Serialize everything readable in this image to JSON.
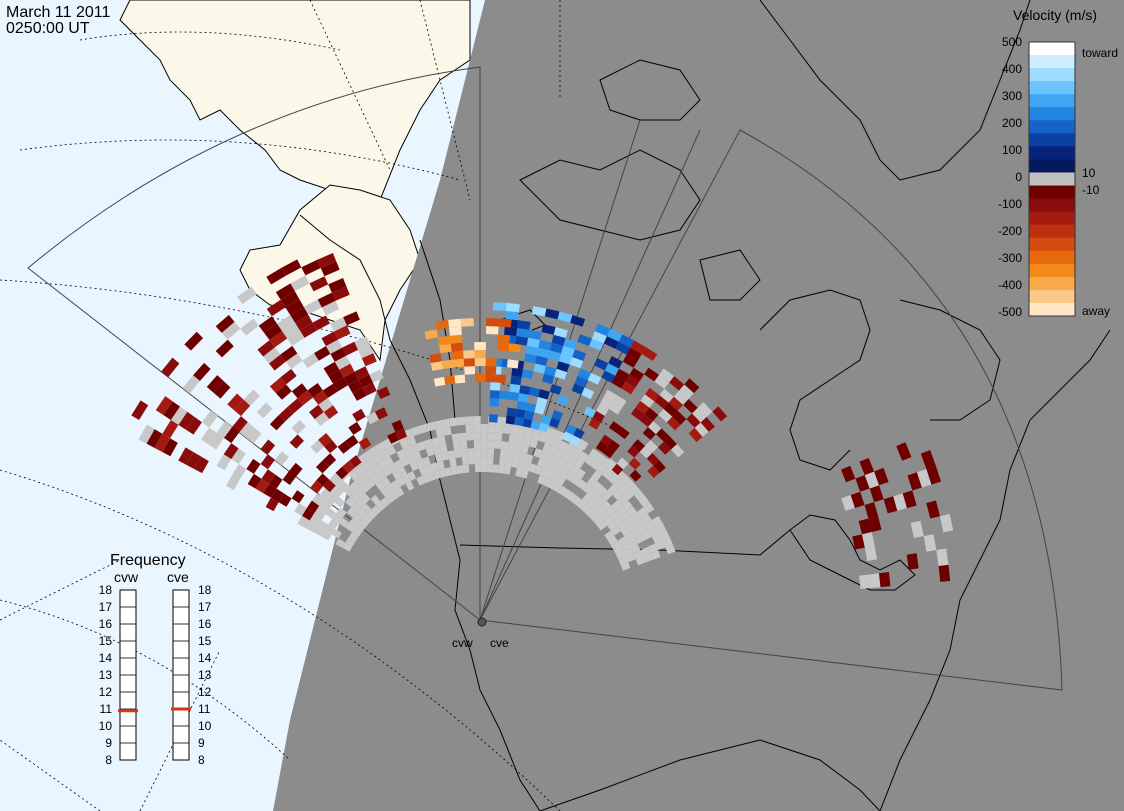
{
  "header": {
    "date": "March 11 2011",
    "time": "0250:00 UT"
  },
  "colors": {
    "night": "#8c8c8c",
    "ocean_day": "#e9f6ff",
    "land_day": "#fbf8ea",
    "ground_scatter": "#c8c8c8",
    "frequency_marker": "#dd3311"
  },
  "legend": {
    "title": "Velocity (m/s)",
    "tick_labels": [
      "500",
      "400",
      "300",
      "200",
      "100",
      "0",
      "-100",
      "-200",
      "-300",
      "-400",
      "-500"
    ],
    "small_labels": [
      "10",
      "-10"
    ],
    "toward_label": "toward",
    "away_label": "away"
  },
  "frequency_panel": {
    "title": "Frequency",
    "left_radar": "cvw",
    "right_radar": "cve",
    "scale": [
      "18",
      "17",
      "16",
      "15",
      "14",
      "13",
      "12",
      "11",
      "10",
      "9",
      "8"
    ],
    "cvw_value_mhz": 10.9,
    "cve_value_mhz": 11.0
  },
  "map": {
    "radar_site_labels": [
      "cvw",
      "cve"
    ]
  }
}
